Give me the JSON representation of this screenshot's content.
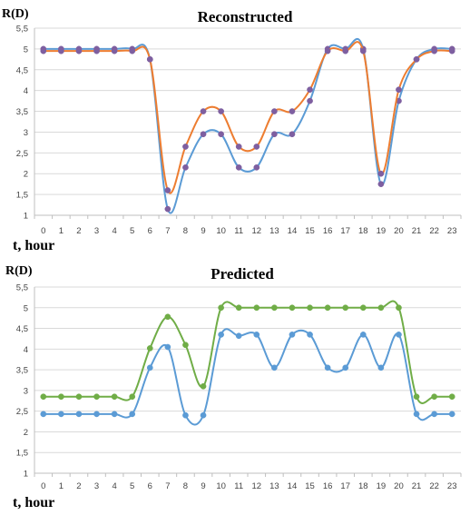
{
  "chart_data": [
    {
      "type": "line",
      "title": "Reconstructed",
      "ylabel": "R(D)",
      "xlabel": "t, hour",
      "x": [
        0,
        1,
        2,
        3,
        4,
        5,
        6,
        7,
        8,
        9,
        10,
        11,
        12,
        13,
        14,
        15,
        16,
        17,
        18,
        19,
        20,
        21,
        22,
        23
      ],
      "x_ticks": [
        "0",
        "1",
        "2",
        "3",
        "4",
        "5",
        "6",
        "7",
        "8",
        "9",
        "10",
        "11",
        "12",
        "13",
        "14",
        "15",
        "16",
        "17",
        "18",
        "19",
        "20",
        "21",
        "22",
        "23"
      ],
      "y_ticks": [
        "1",
        "1,5",
        "2",
        "2,5",
        "3",
        "3,5",
        "4",
        "4,5",
        "5",
        "5,5"
      ],
      "ylim": [
        1,
        5.5
      ],
      "grid": true,
      "legend": "none",
      "series": [
        {
          "color": "#5b9bd5",
          "values": [
            5,
            5,
            5,
            5,
            5,
            5,
            4.75,
            1.15,
            2.15,
            2.95,
            2.95,
            2.15,
            2.15,
            2.95,
            2.95,
            3.75,
            5,
            5,
            5,
            1.75,
            3.75,
            4.75,
            5,
            5
          ]
        },
        {
          "color": "#ed7d31",
          "values": [
            4.95,
            4.95,
            4.95,
            4.95,
            4.95,
            4.95,
            4.75,
            1.6,
            2.65,
            3.5,
            3.5,
            2.65,
            2.65,
            3.5,
            3.5,
            4.02,
            4.95,
            4.95,
            4.95,
            2.0,
            4.02,
            4.75,
            4.95,
            4.95
          ]
        }
      ],
      "marker_color": "#7e5fa0"
    },
    {
      "type": "line",
      "title": "Predicted",
      "ylabel": "R(D)",
      "xlabel": "t, hour",
      "x": [
        0,
        1,
        2,
        3,
        4,
        5,
        6,
        7,
        8,
        9,
        10,
        11,
        12,
        13,
        14,
        15,
        16,
        17,
        18,
        19,
        20,
        21,
        22,
        23
      ],
      "x_ticks": [
        "0",
        "1",
        "2",
        "3",
        "4",
        "5",
        "6",
        "7",
        "8",
        "9",
        "10",
        "11",
        "12",
        "13",
        "14",
        "15",
        "16",
        "17",
        "18",
        "19",
        "20",
        "21",
        "22",
        "23"
      ],
      "y_ticks": [
        "1",
        "1,5",
        "2",
        "2,5",
        "3",
        "3,5",
        "4",
        "4,5",
        "5",
        "5,5"
      ],
      "ylim": [
        1,
        5.5
      ],
      "grid": true,
      "legend": "none",
      "series": [
        {
          "color": "#5b9bd5",
          "values": [
            2.43,
            2.43,
            2.43,
            2.43,
            2.43,
            2.43,
            3.55,
            4.05,
            2.4,
            2.4,
            4.35,
            4.32,
            4.35,
            3.55,
            4.35,
            4.35,
            3.55,
            3.55,
            4.35,
            3.55,
            4.35,
            2.43,
            2.43,
            2.43
          ]
        },
        {
          "color": "#70ad47",
          "values": [
            2.85,
            2.85,
            2.85,
            2.85,
            2.85,
            2.85,
            4.02,
            4.78,
            4.1,
            3.1,
            5.0,
            5.0,
            5.0,
            5.0,
            5.0,
            5.0,
            5.0,
            5.0,
            5.0,
            5.0,
            5.0,
            2.85,
            2.85,
            2.85
          ]
        }
      ]
    }
  ]
}
